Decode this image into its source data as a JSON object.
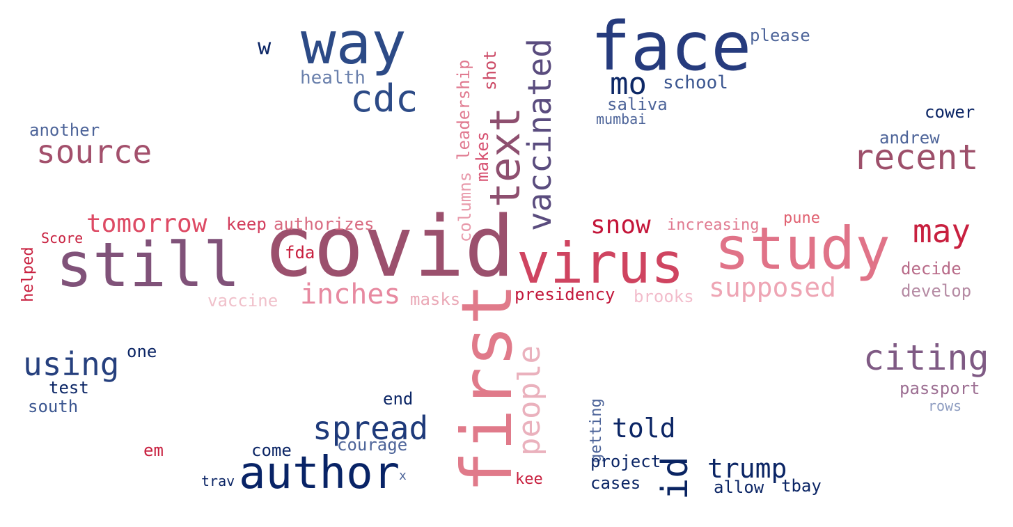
{
  "words": [
    {
      "id": "covid",
      "text": "covid",
      "color": "#9b506d",
      "rotated": false
    },
    {
      "id": "virus",
      "text": "virus",
      "color": "#cf4460",
      "rotated": false
    },
    {
      "id": "study",
      "text": "study",
      "color": "#e07388",
      "rotated": false
    },
    {
      "id": "still",
      "text": "still",
      "color": "#805279",
      "rotated": false
    },
    {
      "id": "face",
      "text": "face",
      "color": "#263b7d",
      "rotated": false
    },
    {
      "id": "way",
      "text": "way",
      "color": "#2c4a86",
      "rotated": false
    },
    {
      "id": "author",
      "text": "author",
      "color": "#082366",
      "rotated": false
    },
    {
      "id": "first",
      "text": "first",
      "color": "#e07a8a",
      "rotated": true
    },
    {
      "id": "text",
      "text": "text",
      "color": "#8e4f6f",
      "rotated": true
    },
    {
      "id": "vaccinated",
      "text": "vaccinated",
      "color": "#5a4c7e",
      "rotated": true
    },
    {
      "id": "cdc",
      "text": "cdc",
      "color": "#2c4a86",
      "rotated": false
    },
    {
      "id": "source",
      "text": "source",
      "color": "#a3506c",
      "rotated": false
    },
    {
      "id": "recent",
      "text": "recent",
      "color": "#9d4f6a",
      "rotated": false
    },
    {
      "id": "citing",
      "text": "citing",
      "color": "#7f5a84",
      "rotated": false
    },
    {
      "id": "using",
      "text": "using",
      "color": "#26407e",
      "rotated": false
    },
    {
      "id": "spread",
      "text": "spread",
      "color": "#1e3a7a",
      "rotated": false
    },
    {
      "id": "may",
      "text": "may",
      "color": "#c8203f",
      "rotated": false
    },
    {
      "id": "people",
      "text": "people",
      "color": "#eab1bd",
      "rotated": true
    },
    {
      "id": "supposed",
      "text": "supposed",
      "color": "#eea5b4",
      "rotated": false
    },
    {
      "id": "inches",
      "text": "inches",
      "color": "#e789a0",
      "rotated": false
    },
    {
      "id": "mo",
      "text": "mo",
      "color": "#0d2866",
      "rotated": false
    },
    {
      "id": "tomorrow",
      "text": "tomorrow",
      "color": "#dd4a64",
      "rotated": false
    },
    {
      "id": "snow",
      "text": "snow",
      "color": "#c4163a",
      "rotated": false
    },
    {
      "id": "told",
      "text": "told",
      "color": "#0b2565",
      "rotated": false
    },
    {
      "id": "trump",
      "text": "trump",
      "color": "#0b2565",
      "rotated": false
    },
    {
      "id": "id",
      "text": "id",
      "color": "#0a2462",
      "rotated": true
    },
    {
      "id": "w",
      "text": "w",
      "color": "#0b2565",
      "rotated": false
    },
    {
      "id": "health",
      "text": "health",
      "color": "#6a80ac",
      "rotated": false
    },
    {
      "id": "school",
      "text": "school",
      "color": "#3b5690",
      "rotated": false
    },
    {
      "id": "saliva",
      "text": "saliva",
      "color": "#4d6499",
      "rotated": false
    },
    {
      "id": "mumbai",
      "text": "mumbai",
      "color": "#4d6499",
      "rotated": false
    },
    {
      "id": "please",
      "text": "please",
      "color": "#4d6499",
      "rotated": false
    },
    {
      "id": "cower",
      "text": "cower",
      "color": "#0b2565",
      "rotated": false
    },
    {
      "id": "andrew",
      "text": "andrew",
      "color": "#4d6499",
      "rotated": false
    },
    {
      "id": "another",
      "text": "another",
      "color": "#4d6499",
      "rotated": false
    },
    {
      "id": "keep",
      "text": "keep",
      "color": "#d23c5c",
      "rotated": false
    },
    {
      "id": "authorizes",
      "text": "authorizes",
      "color": "#d86a80",
      "rotated": false
    },
    {
      "id": "fda",
      "text": "fda",
      "color": "#c8203f",
      "rotated": false
    },
    {
      "id": "score",
      "text": "Score",
      "color": "#c8203f",
      "rotated": false
    },
    {
      "id": "helped",
      "text": "helped",
      "color": "#c8203f",
      "rotated": true
    },
    {
      "id": "vaccine",
      "text": "vaccine",
      "color": "#f0c0ca",
      "rotated": false
    },
    {
      "id": "masks",
      "text": "masks",
      "color": "#eaa8b6",
      "rotated": false
    },
    {
      "id": "presidency",
      "text": "presidency",
      "color": "#c2163a",
      "rotated": false
    },
    {
      "id": "brooks",
      "text": "brooks",
      "color": "#f2bccb",
      "rotated": false
    },
    {
      "id": "increasing",
      "text": "increasing",
      "color": "#e07a90",
      "rotated": false
    },
    {
      "id": "pune",
      "text": "pune",
      "color": "#e06070",
      "rotated": false
    },
    {
      "id": "decide",
      "text": "decide",
      "color": "#b86a88",
      "rotated": false
    },
    {
      "id": "develop",
      "text": "develop",
      "color": "#b58aa3",
      "rotated": false
    },
    {
      "id": "passport",
      "text": "passport",
      "color": "#9c6e92",
      "rotated": false
    },
    {
      "id": "rows",
      "text": "rows",
      "color": "#8d9cc0",
      "rotated": false
    },
    {
      "id": "leadership",
      "text": "leadership",
      "color": "#e07a90",
      "rotated": true
    },
    {
      "id": "shot",
      "text": "shot",
      "color": "#cc4a66",
      "rotated": true
    },
    {
      "id": "makes",
      "text": "makes",
      "color": "#d65070",
      "rotated": true
    },
    {
      "id": "columns",
      "text": "columns",
      "color": "#e89aab",
      "rotated": true
    },
    {
      "id": "getting",
      "text": "getting",
      "color": "#4d6499",
      "rotated": true
    },
    {
      "id": "one",
      "text": "one",
      "color": "#0b2565",
      "rotated": false
    },
    {
      "id": "test",
      "text": "test",
      "color": "#0b2565",
      "rotated": false
    },
    {
      "id": "south",
      "text": "south",
      "color": "#3b5690",
      "rotated": false
    },
    {
      "id": "end",
      "text": "end",
      "color": "#0b2565",
      "rotated": false
    },
    {
      "id": "come",
      "text": "come",
      "color": "#0b2565",
      "rotated": false
    },
    {
      "id": "courage",
      "text": "courage",
      "color": "#4d6499",
      "rotated": false
    },
    {
      "id": "em",
      "text": "em",
      "color": "#c8203f",
      "rotated": false
    },
    {
      "id": "trav",
      "text": "trav",
      "color": "#0b2565",
      "rotated": false
    },
    {
      "id": "x",
      "text": "x",
      "color": "#4d6499",
      "rotated": false
    },
    {
      "id": "kee",
      "text": "kee",
      "color": "#c8203f",
      "rotated": false
    },
    {
      "id": "project",
      "text": "project",
      "color": "#0b2565",
      "rotated": false
    },
    {
      "id": "cases",
      "text": "cases",
      "color": "#0b2565",
      "rotated": false
    },
    {
      "id": "allow",
      "text": "allow",
      "color": "#0b2565",
      "rotated": false
    },
    {
      "id": "tbay",
      "text": "tbay",
      "color": "#0b2565",
      "rotated": false
    }
  ]
}
